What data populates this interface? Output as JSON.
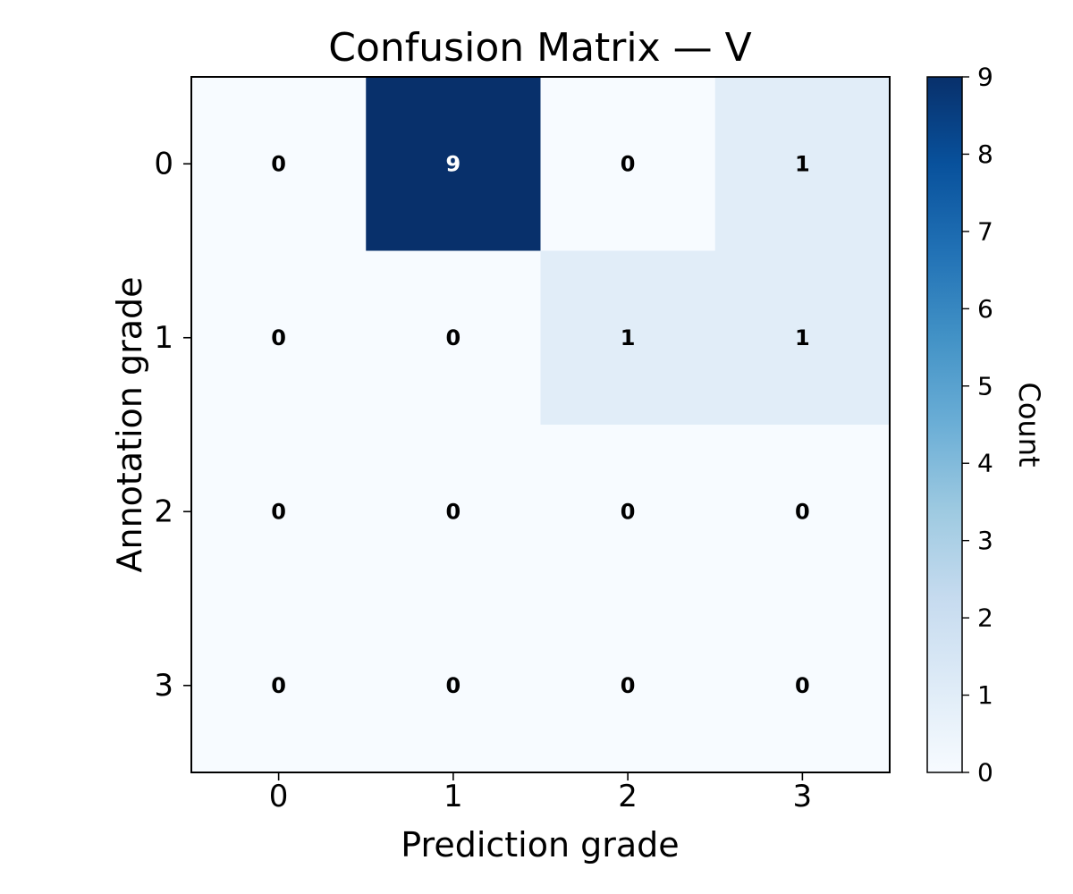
{
  "chart_data": {
    "type": "heatmap",
    "title": "Confusion Matrix — V",
    "xlabel": "Prediction grade",
    "ylabel": "Annotation grade",
    "x_categories": [
      "0",
      "1",
      "2",
      "3"
    ],
    "y_categories": [
      "0",
      "1",
      "2",
      "3"
    ],
    "matrix": [
      [
        0,
        9,
        0,
        1
      ],
      [
        0,
        0,
        1,
        1
      ],
      [
        0,
        0,
        0,
        0
      ],
      [
        0,
        0,
        0,
        0
      ]
    ],
    "colorbar": {
      "label": "Count",
      "min": 0,
      "max": 9,
      "ticks": [
        "0",
        "1",
        "2",
        "3",
        "4",
        "5",
        "6",
        "7",
        "8",
        "9"
      ],
      "colormap": "Blues"
    },
    "grid": false,
    "colors": {
      "low": "#f7fbff",
      "high": "#08306b",
      "text_dark": "#000000",
      "text_light": "#ffffff"
    }
  }
}
